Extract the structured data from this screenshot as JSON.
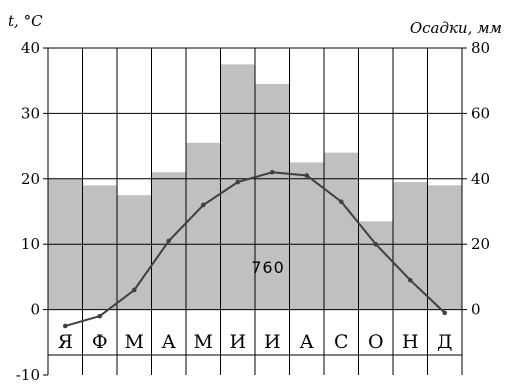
{
  "chart_data": {
    "type": "bar",
    "title": "",
    "categories": [
      "Я",
      "Ф",
      "М",
      "А",
      "М",
      "И",
      "И",
      "А",
      "С",
      "О",
      "Н",
      "Д"
    ],
    "y_left": {
      "label": "t, °C",
      "min": -10,
      "max": 40,
      "ticks": [
        -10,
        0,
        10,
        20,
        30,
        40
      ]
    },
    "y_right": {
      "label": "Осадки, мм",
      "min": -20,
      "max": 80,
      "ticks": [
        0,
        20,
        40,
        60,
        80
      ]
    },
    "series": [
      {
        "type": "bar",
        "axis": "right",
        "values": [
          40,
          38,
          35,
          42,
          51,
          75,
          69,
          45,
          48,
          27,
          39,
          38
        ]
      },
      {
        "type": "line",
        "axis": "left",
        "values": [
          -2.5,
          -1,
          3,
          10.5,
          16,
          19.5,
          21,
          20.5,
          16.5,
          10,
          4.5,
          -0.5
        ]
      }
    ],
    "annotation": "760",
    "grid": true,
    "colors": {
      "bar": "#c0c0c0",
      "line": "#404040",
      "grid": "#000000"
    }
  }
}
